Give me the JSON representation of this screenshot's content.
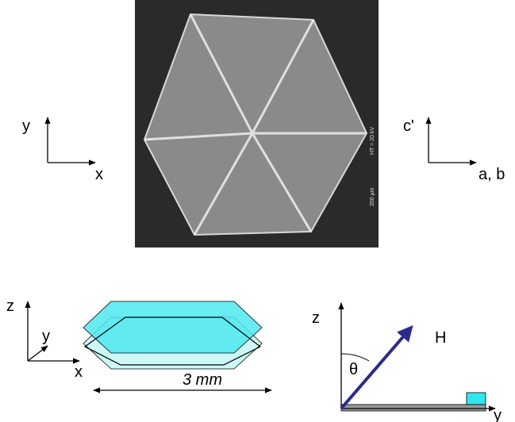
{
  "sem_image": {
    "scale_label": "200 µm",
    "voltage_label": "HT = 20 kV"
  },
  "left_axes": {
    "vertical": "y",
    "horizontal": "x"
  },
  "right_axes": {
    "vertical": "c'",
    "horizontal": "a, b"
  },
  "crystal_axes": {
    "z": "z",
    "y": "y",
    "x": "x"
  },
  "crystal_size": "3 mm",
  "field_diagram": {
    "z": "z",
    "field": "H",
    "angle": "θ",
    "y": "y"
  }
}
